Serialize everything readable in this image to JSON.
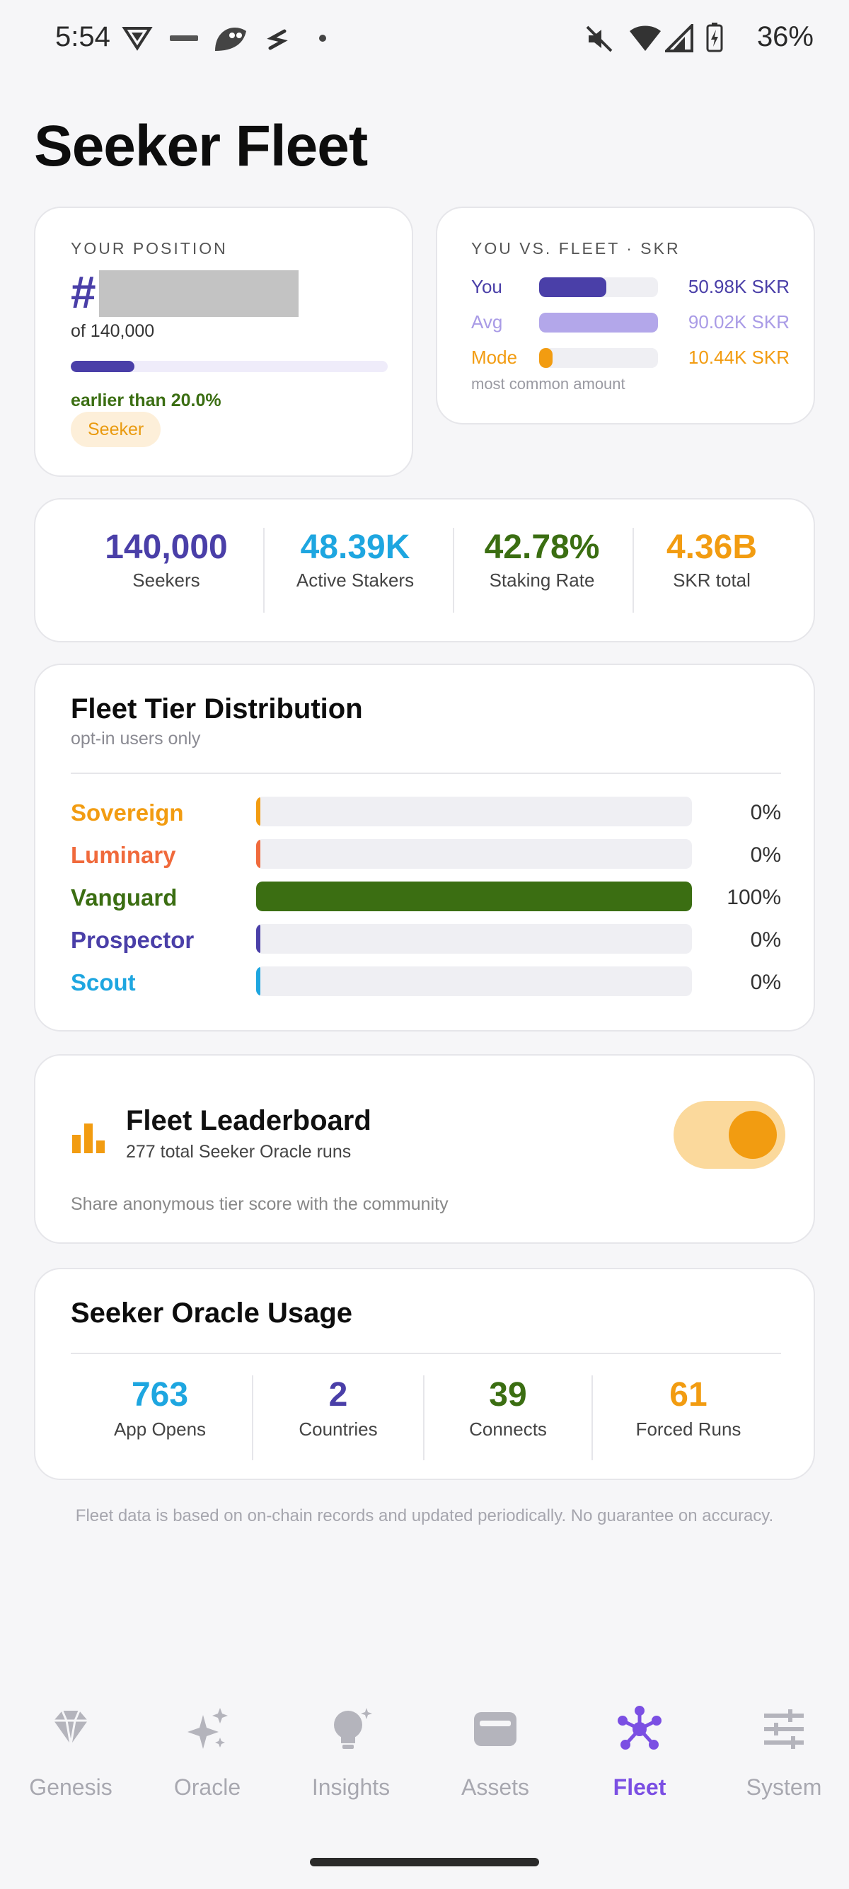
{
  "status_bar": {
    "time": "5:54",
    "battery": "36%"
  },
  "page_title": "Seeker Fleet",
  "position": {
    "eyebrow": "YOUR POSITION",
    "hash": "#",
    "of_total": "of 140,000",
    "progress": 0.2,
    "earlier": "earlier than 20.0%",
    "badge": "Seeker"
  },
  "compare": {
    "eyebrow": "YOU VS. FLEET · SKR",
    "rows": [
      {
        "label": "You",
        "value": "50.98K SKR",
        "fill": 0.566,
        "color": "#4a3fa8",
        "fill_color": "#4a3fa8"
      },
      {
        "label": "Avg",
        "value": "90.02K SKR",
        "fill": 1.0,
        "color": "#a99be6",
        "fill_color": "#b3a7ea"
      },
      {
        "label": "Mode",
        "value": "10.44K SKR",
        "fill": 0.116,
        "color": "#f29c11",
        "fill_color": "#f29c11"
      }
    ],
    "note": "most common amount"
  },
  "stats": [
    {
      "value": "140,000",
      "label": "Seekers",
      "color": "#4a3fa8"
    },
    {
      "value": "48.39K",
      "label": "Active Stakers",
      "color": "#1ea6e0"
    },
    {
      "value": "42.78%",
      "label": "Staking Rate",
      "color": "#3b6e12"
    },
    {
      "value": "4.36B",
      "label": "SKR total",
      "color": "#f29c11"
    }
  ],
  "tiers": {
    "title": "Fleet Tier Distribution",
    "subtitle": "opt-in users only",
    "rows": [
      {
        "name": "Sovereign",
        "pct": "0%",
        "fraction": 0,
        "color": "#f29c11"
      },
      {
        "name": "Luminary",
        "pct": "0%",
        "fraction": 0,
        "color": "#f06a3c"
      },
      {
        "name": "Vanguard",
        "pct": "100%",
        "fraction": 1,
        "color": "#3b6e12"
      },
      {
        "name": "Prospector",
        "pct": "0%",
        "fraction": 0,
        "color": "#4a3fa8"
      },
      {
        "name": "Scout",
        "pct": "0%",
        "fraction": 0,
        "color": "#1ea6e0"
      }
    ]
  },
  "leaderboard": {
    "title": "Fleet Leaderboard",
    "subtitle": "277 total Seeker Oracle runs",
    "note": "Share anonymous tier score with the community",
    "enabled": true
  },
  "usage": {
    "title": "Seeker Oracle Usage",
    "items": [
      {
        "value": "763",
        "label": "App Opens",
        "color": "#1ea6e0"
      },
      {
        "value": "2",
        "label": "Countries",
        "color": "#4a3fa8"
      },
      {
        "value": "39",
        "label": "Connects",
        "color": "#3b6e12"
      },
      {
        "value": "61",
        "label": "Forced Runs",
        "color": "#f29c11"
      }
    ]
  },
  "disclaimer": "Fleet data is based on on-chain records and updated periodically. No guarantee on accuracy.",
  "nav": [
    {
      "label": "Genesis",
      "icon": "diamond-icon",
      "active": false
    },
    {
      "label": "Oracle",
      "icon": "sparkle-icon",
      "active": false
    },
    {
      "label": "Insights",
      "icon": "lightbulb-icon",
      "active": false
    },
    {
      "label": "Assets",
      "icon": "wallet-icon",
      "active": false
    },
    {
      "label": "Fleet",
      "icon": "network-icon",
      "active": true
    },
    {
      "label": "System",
      "icon": "sliders-icon",
      "active": false
    }
  ]
}
